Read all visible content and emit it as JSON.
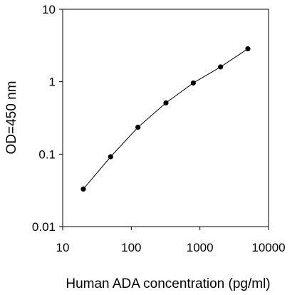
{
  "chart_data": {
    "type": "line",
    "title": "",
    "xlabel": "Human ADA concentration (pg/ml)",
    "ylabel": "OD=450 nm",
    "xscale": "log",
    "yscale": "log",
    "xlim": [
      10,
      10000
    ],
    "ylim": [
      0.01,
      10
    ],
    "grid": false,
    "legend": "none",
    "x_ticks": [
      "10",
      "100",
      "1000",
      "10000"
    ],
    "y_ticks": [
      "0.01",
      "0.1",
      "1",
      "10"
    ],
    "series": [
      {
        "x": [
          20,
          50,
          125,
          320,
          800,
          2000,
          5000
        ],
        "y": [
          0.033,
          0.092,
          0.235,
          0.51,
          0.96,
          1.6,
          2.85
        ],
        "color": "#000000",
        "marker": "circle"
      }
    ]
  }
}
